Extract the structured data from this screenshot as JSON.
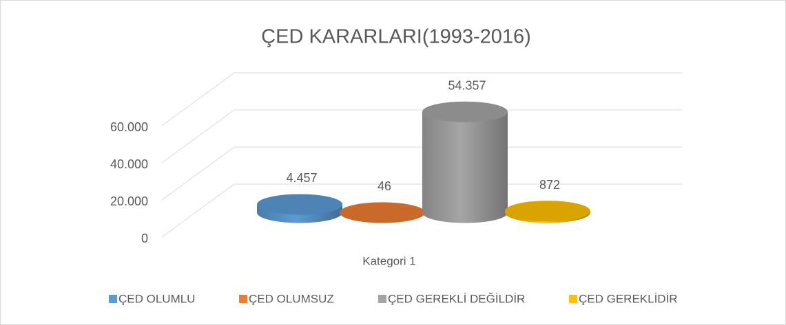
{
  "chart_data": {
    "type": "bar3d",
    "title": "ÇED KARARLARI(1993-2016)",
    "categories": [
      "Kategori 1"
    ],
    "series": [
      {
        "name": "ÇED OLUMLU",
        "color": "#5b9bd5",
        "values": [
          4457
        ],
        "value_labels": [
          "4.457"
        ]
      },
      {
        "name": "ÇED OLUMSUZ",
        "color": "#ed7d31",
        "values": [
          46
        ]
      },
      {
        "name": "ÇED GEREKLİ DEĞİLDİR",
        "color": "#a5a5a5",
        "values": [
          54357
        ],
        "value_labels": [
          "54.357"
        ]
      },
      {
        "name": "ÇED GEREKLİDİR",
        "color": "#ffc000",
        "values": [
          872
        ]
      }
    ],
    "ylim": [
      0,
      60000
    ],
    "yticks": [
      0,
      {
        "value": 20000,
        "label": "20.000"
      },
      {
        "value": 40000,
        "label": "40.000"
      },
      {
        "value": 60000,
        "label": "60.000"
      }
    ],
    "grid": true,
    "legend": "bottom"
  }
}
